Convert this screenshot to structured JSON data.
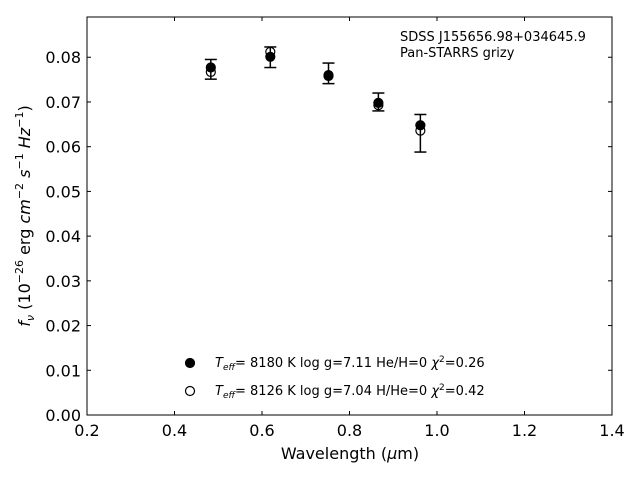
{
  "chart_data": {
    "type": "scatter",
    "title": "",
    "annotation": [
      "SDSS J155656.98+034645.9",
      "Pan-STARRS grizy"
    ],
    "xlabel": "Wavelength (μm)",
    "ylabel": "f_ν (10^-26 erg cm^-2 s^-1 Hz^-1)",
    "xlim": [
      0.2,
      1.4
    ],
    "ylim": [
      0.0,
      0.089
    ],
    "xticks": [
      0.2,
      0.4,
      0.6,
      0.8,
      1.0,
      1.2,
      1.4
    ],
    "xtick_labels": [
      "0.2",
      "0.4",
      "0.6",
      "0.8",
      "1.0",
      "1.2",
      "1.4"
    ],
    "yticks": [
      0.0,
      0.01,
      0.02,
      0.03,
      0.04,
      0.05,
      0.06,
      0.07,
      0.08
    ],
    "ytick_labels": [
      "0.00",
      "0.01",
      "0.02",
      "0.03",
      "0.04",
      "0.05",
      "0.06",
      "0.07",
      "0.08"
    ],
    "grid": false,
    "legend_position": "bottom-center",
    "observed": {
      "x": [
        0.483,
        0.619,
        0.752,
        0.866,
        0.962
      ],
      "y": [
        0.0773,
        0.08,
        0.0764,
        0.07,
        0.063
      ],
      "yerr": [
        0.0022,
        0.0023,
        0.0023,
        0.002,
        0.0042
      ]
    },
    "series": [
      {
        "name": "Teff= 8180 K log g=7.11 He/H=0 χ2=0.26",
        "marker": "filled-circle",
        "x": [
          0.483,
          0.619,
          0.752,
          0.866,
          0.962
        ],
        "y": [
          0.0777,
          0.0801,
          0.076,
          0.0698,
          0.0648
        ]
      },
      {
        "name": "Teff= 8126 K log g=7.04 H/He=0 χ2=0.42",
        "marker": "open-circle",
        "x": [
          0.483,
          0.619,
          0.752,
          0.866,
          0.962
        ],
        "y": [
          0.0767,
          0.0812,
          0.0758,
          0.0693,
          0.0636
        ]
      }
    ],
    "legend": [
      {
        "marker": "filled-circle",
        "teff": "8180 K",
        "logg": "log g=7.11",
        "comp": "He/H=0",
        "chi2": "=0.26"
      },
      {
        "marker": "open-circle",
        "teff": "8126 K",
        "logg": "log g=7.04",
        "comp": "H/He=0",
        "chi2": "=0.42"
      }
    ],
    "colors": {
      "marker": "#000000",
      "background": "#ffffff",
      "axes": "#000000"
    }
  }
}
